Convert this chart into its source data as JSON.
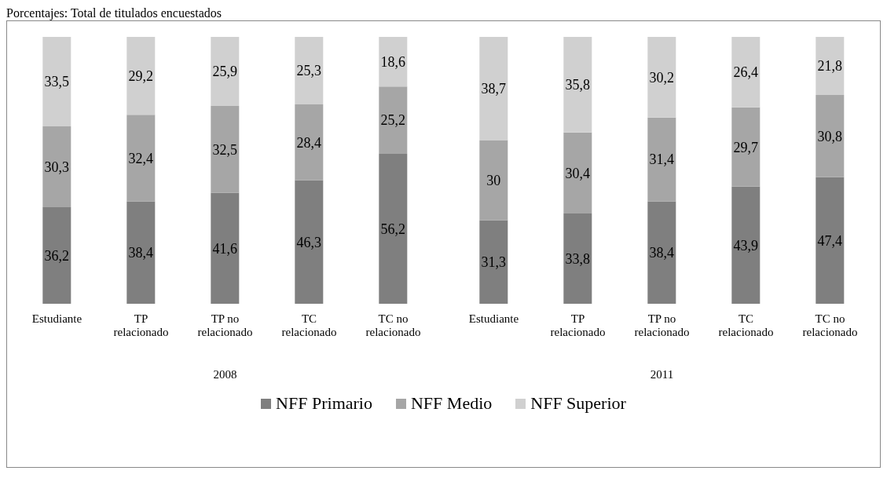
{
  "chart_data": [
    {
      "type": "bar",
      "title": "Porcentajes: Total de titulados encuestados",
      "xlabel": "2008",
      "stacked": true,
      "legend": "bottom",
      "categories": [
        "Estudiante",
        "TP relacionado",
        "TP no relacionado",
        "TC relacionado",
        "TC no relacionado"
      ],
      "series": [
        {
          "name": "NFF Primario",
          "color": "#7f7f7f",
          "values": [
            36.2,
            38.4,
            41.6,
            46.3,
            56.2
          ],
          "value_labels": [
            "36,2",
            "38,4",
            "41,6",
            "46,3",
            "56,2"
          ]
        },
        {
          "name": "NFF Medio",
          "color": "#a6a6a6",
          "values": [
            30.3,
            32.4,
            32.5,
            28.4,
            25.2
          ],
          "value_labels": [
            "30,3",
            "32,4",
            "32,5",
            "28,4",
            "25,2"
          ]
        },
        {
          "name": "NFF Superior",
          "color": "#d0d0d0",
          "values": [
            33.5,
            29.2,
            25.9,
            25.3,
            18.6
          ],
          "value_labels": [
            "33,5",
            "29,2",
            "25,9",
            "25,3",
            "18,6"
          ]
        }
      ]
    },
    {
      "type": "bar",
      "xlabel": "2011",
      "stacked": true,
      "categories": [
        "Estudiante",
        "TP relacionado",
        "TP no relacionado",
        "TC relacionado",
        "TC no relacionado"
      ],
      "series": [
        {
          "color": "#7f7f7f",
          "values": [
            31.3,
            33.8,
            38.4,
            43.9,
            47.4
          ],
          "value_labels": [
            "31,3",
            "33,8",
            "38,4",
            "43,9",
            "47,4"
          ]
        },
        {
          "color": "#a6a6a6",
          "values": [
            30,
            30.4,
            31.4,
            29.7,
            30.8
          ],
          "value_labels": [
            "30",
            "30,4",
            "31,4",
            "29,7",
            "30,8"
          ]
        },
        {
          "color": "#d0d0d0",
          "values": [
            38.7,
            35.8,
            30.2,
            26.4,
            21.8
          ],
          "value_labels": [
            "38,7",
            "35,8",
            "30,2",
            "26,4",
            "21,8"
          ]
        }
      ]
    }
  ]
}
